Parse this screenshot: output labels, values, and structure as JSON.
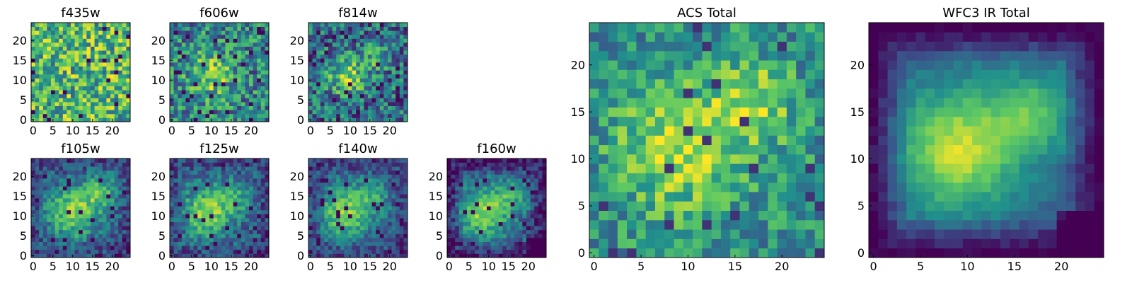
{
  "figure": {
    "colormap": [
      "#440154",
      "#3b528b",
      "#21918c",
      "#5ec962",
      "#fde725"
    ]
  },
  "chart_data": [
    {
      "type": "heatmap",
      "title": "f435w",
      "grid_size": 25,
      "xlim": [
        0,
        25
      ],
      "ylim": [
        0,
        25
      ],
      "xticks": [
        0,
        5,
        10,
        15,
        20
      ],
      "yticks": [
        0,
        5,
        10,
        15,
        20
      ],
      "sources": [],
      "noise": 0.34,
      "base": 0.66,
      "floor": 0,
      "corner_dark": 0,
      "grid": false
    },
    {
      "type": "heatmap",
      "title": "f606w",
      "grid_size": 25,
      "xlim": [
        0,
        25
      ],
      "ylim": [
        0,
        25
      ],
      "xticks": [
        0,
        5,
        10,
        15,
        20
      ],
      "yticks": [
        0,
        5,
        10,
        15,
        20
      ],
      "sources": [
        {
          "x": 10,
          "y": 11,
          "amp": 0.35,
          "sigma": 4
        }
      ],
      "noise": 0.3,
      "base": 0.45,
      "floor": 0,
      "corner_dark": 0,
      "grid": false
    },
    {
      "type": "heatmap",
      "title": "f814w",
      "grid_size": 25,
      "xlim": [
        0,
        25
      ],
      "ylim": [
        0,
        25
      ],
      "xticks": [
        0,
        5,
        10,
        15,
        20
      ],
      "yticks": [
        0,
        5,
        10,
        15,
        20
      ],
      "sources": [
        {
          "x": 9,
          "y": 11,
          "amp": 0.45,
          "sigma": 3.5
        },
        {
          "x": 17,
          "y": 16,
          "amp": 0.3,
          "sigma": 2.5
        }
      ],
      "noise": 0.3,
      "base": 0.35,
      "floor": 0,
      "corner_dark": 0,
      "grid": false
    },
    {
      "type": "heatmap",
      "title": "f105w",
      "grid_size": 25,
      "xlim": [
        0,
        25
      ],
      "ylim": [
        0,
        25
      ],
      "xticks": [
        0,
        5,
        10,
        15,
        20
      ],
      "yticks": [
        0,
        5,
        10,
        15,
        20
      ],
      "sources": [
        {
          "x": 10,
          "y": 11,
          "amp": 0.5,
          "sigma": 4.5
        },
        {
          "x": 17,
          "y": 16,
          "amp": 0.35,
          "sigma": 3
        }
      ],
      "noise": 0.18,
      "base": 0.3,
      "floor": 0,
      "corner_dark": 0.1,
      "grid": false
    },
    {
      "type": "heatmap",
      "title": "f125w",
      "grid_size": 25,
      "xlim": [
        0,
        25
      ],
      "ylim": [
        0,
        25
      ],
      "xticks": [
        0,
        5,
        10,
        15,
        20
      ],
      "yticks": [
        0,
        5,
        10,
        15,
        20
      ],
      "sources": [
        {
          "x": 9,
          "y": 11,
          "amp": 0.5,
          "sigma": 4.5
        },
        {
          "x": 16,
          "y": 15,
          "amp": 0.25,
          "sigma": 3
        }
      ],
      "noise": 0.18,
      "base": 0.3,
      "floor": 0,
      "corner_dark": 0.1,
      "grid": false
    },
    {
      "type": "heatmap",
      "title": "f140w",
      "grid_size": 25,
      "xlim": [
        0,
        25
      ],
      "ylim": [
        0,
        25
      ],
      "xticks": [
        0,
        5,
        10,
        15,
        20
      ],
      "yticks": [
        0,
        5,
        10,
        15,
        20
      ],
      "sources": [
        {
          "x": 9,
          "y": 11,
          "amp": 0.55,
          "sigma": 4.5
        },
        {
          "x": 16,
          "y": 15,
          "amp": 0.25,
          "sigma": 3
        }
      ],
      "noise": 0.16,
      "base": 0.28,
      "floor": 0,
      "corner_dark": 0.1,
      "grid": false
    },
    {
      "type": "heatmap",
      "title": "f160w",
      "grid_size": 25,
      "xlim": [
        0,
        25
      ],
      "ylim": [
        0,
        25
      ],
      "xticks": [
        0,
        5,
        10,
        15,
        20
      ],
      "yticks": [
        0,
        5,
        10,
        15,
        20
      ],
      "sources": [
        {
          "x": 9,
          "y": 11,
          "amp": 0.55,
          "sigma": 4.5
        },
        {
          "x": 16,
          "y": 15,
          "amp": 0.25,
          "sigma": 3
        }
      ],
      "noise": 0.16,
      "base": 0.28,
      "floor": 0,
      "corner_dark": 0.25,
      "grid": false
    },
    {
      "type": "heatmap",
      "title": "ACS Total",
      "grid_size": 25,
      "xlim": [
        0,
        25
      ],
      "ylim": [
        0,
        25
      ],
      "xticks": [
        0,
        5,
        10,
        15,
        20
      ],
      "yticks": [
        0,
        5,
        10,
        15,
        20
      ],
      "sources": [
        {
          "x": 9,
          "y": 11,
          "amp": 0.4,
          "sigma": 4.5
        },
        {
          "x": 17,
          "y": 16,
          "amp": 0.35,
          "sigma": 3
        }
      ],
      "noise": 0.22,
      "base": 0.5,
      "floor": 0.15,
      "corner_dark": 0,
      "grid": false
    },
    {
      "type": "heatmap",
      "title": "WFC3 IR Total",
      "grid_size": 25,
      "xlim": [
        0,
        25
      ],
      "ylim": [
        0,
        25
      ],
      "xticks": [
        0,
        5,
        10,
        15,
        20
      ],
      "yticks": [
        0,
        5,
        10,
        15,
        20
      ],
      "sources": [
        {
          "x": 9,
          "y": 11,
          "amp": 0.6,
          "sigma": 4.5
        },
        {
          "x": 17,
          "y": 15,
          "amp": 0.35,
          "sigma": 3
        }
      ],
      "noise": 0.06,
      "base": 0.32,
      "floor": 0,
      "corner_dark": 0.35,
      "grid": false
    }
  ]
}
